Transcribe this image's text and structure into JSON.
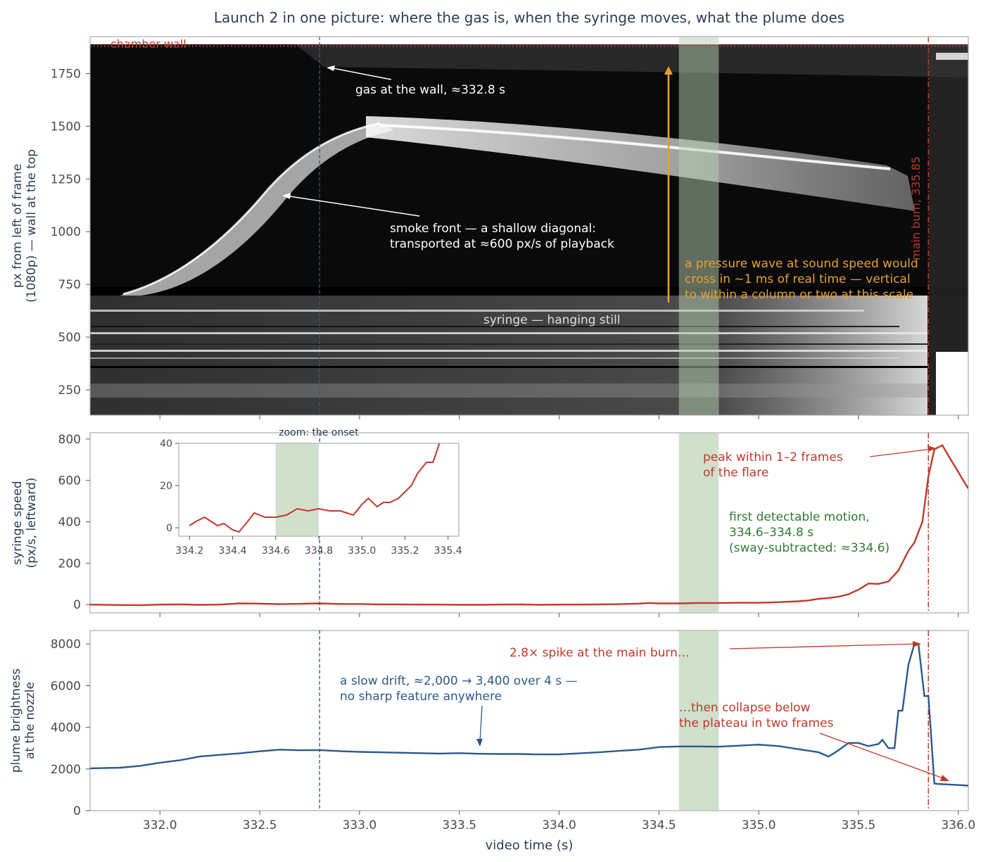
{
  "figure": {
    "title": "Launch 2 in one picture: where the gas is, when the syringe moves, what the plume does",
    "xlabel": "video time (s)",
    "x_ticks": [
      "332.0",
      "332.5",
      "333.0",
      "333.5",
      "334.0",
      "334.5",
      "335.0",
      "335.5",
      "336.0"
    ],
    "colors": {
      "title": "#2c3e55",
      "axis_text": "#4a4a4a",
      "red": "#c0392b",
      "blue": "#2c5a8a",
      "green": "#2e7d32",
      "orange": "#e8a030",
      "shade": "#2e7d32",
      "spine": "#aaaaaa"
    }
  },
  "chart_data": [
    {
      "type": "heatmap",
      "panel": "kymograph",
      "ylabel_line1": "px from left of frame",
      "ylabel_line2": "(1080p) — wall at the top",
      "xlim": [
        331.65,
        336.05
      ],
      "ylim": [
        130,
        1925
      ],
      "y_ticks": [
        250,
        500,
        750,
        1000,
        1250,
        1500,
        1750
      ],
      "wall_y": 1880,
      "wall_label": "chamber wall",
      "gas_wall_time": 332.8,
      "main_burn_time": 335.85,
      "main_burn_label": "main burn, 335.85",
      "shade_range": [
        334.6,
        334.8
      ],
      "annotations": {
        "gas_wall": "gas at the wall, ≈332.8 s",
        "smoke_line1": "smoke front — a shallow diagonal:",
        "smoke_line2": "transported at ≈600 px/s of playback",
        "pressure_line1": "a pressure wave at sound speed would",
        "pressure_line2": "cross in ~1 ms of real time — vertical",
        "pressure_line3": "to within a column or two at this scale",
        "syringe": "syringe — hanging still"
      }
    },
    {
      "type": "line",
      "panel": "syringe-speed",
      "ylabel_line1": "syringe speed",
      "ylabel_line2": "(px/s, leftward)",
      "xlim": [
        331.65,
        336.05
      ],
      "ylim": [
        -40,
        830
      ],
      "y_ticks": [
        0,
        200,
        400,
        600,
        800
      ],
      "x": [
        331.65,
        331.8,
        331.9,
        332.0,
        332.1,
        332.2,
        332.3,
        332.4,
        332.5,
        332.6,
        332.7,
        332.8,
        332.9,
        333.0,
        333.1,
        333.2,
        333.3,
        333.4,
        333.5,
        333.6,
        333.7,
        333.8,
        333.9,
        334.0,
        334.1,
        334.2,
        334.3,
        334.4,
        334.45,
        334.5,
        334.6,
        334.7,
        334.8,
        334.9,
        335.0,
        335.05,
        335.1,
        335.15,
        335.2,
        335.25,
        335.3,
        335.35,
        335.4,
        335.45,
        335.5,
        335.55,
        335.6,
        335.65,
        335.7,
        335.75,
        335.78,
        335.82,
        335.85,
        335.88,
        335.92,
        335.95,
        336.0,
        336.05
      ],
      "values": [
        0,
        -2,
        -3,
        0,
        1,
        -1,
        0,
        6,
        5,
        2,
        4,
        6,
        3,
        3,
        1,
        1,
        0,
        0,
        -1,
        -1,
        0,
        1,
        -1,
        0,
        0,
        1,
        2,
        5,
        8,
        6,
        6,
        8,
        8,
        9,
        9,
        10,
        12,
        14,
        16,
        20,
        28,
        32,
        38,
        50,
        72,
        102,
        100,
        112,
        165,
        260,
        300,
        400,
        620,
        750,
        770,
        720,
        640,
        560
      ],
      "inset": {
        "title": "zoom: the onset",
        "xlim": [
          334.15,
          335.45
        ],
        "ylim": [
          -4,
          40
        ],
        "x_ticks": [
          "334.2",
          "334.4",
          "334.6",
          "334.8",
          "335.0",
          "335.2",
          "335.4"
        ],
        "y_ticks": [
          0,
          20,
          40
        ],
        "x": [
          334.2,
          334.23,
          334.27,
          334.3,
          334.33,
          334.36,
          334.4,
          334.43,
          334.47,
          334.5,
          334.55,
          334.6,
          334.65,
          334.7,
          334.75,
          334.8,
          334.85,
          334.9,
          334.93,
          334.96,
          335.0,
          335.03,
          335.07,
          335.1,
          335.13,
          335.17,
          335.2,
          335.23,
          335.26,
          335.3,
          335.33,
          335.36
        ],
        "values": [
          1,
          3,
          5,
          3,
          1,
          2,
          -1,
          -2,
          3,
          7,
          5,
          5,
          6,
          9,
          8,
          9,
          8,
          8,
          7,
          6,
          11,
          14,
          10,
          12,
          12,
          14,
          17,
          20,
          26,
          31,
          31,
          40
        ]
      },
      "annotations": {
        "peak_line1": "peak within 1–2 frames",
        "peak_line2": "of the flare",
        "first_line1": "first detectable motion,",
        "first_line2": "334.6–334.8 s",
        "first_line3": "(sway-subtracted: ≈334.6)"
      }
    },
    {
      "type": "line",
      "panel": "plume-brightness",
      "ylabel_line1": "plume brightness",
      "ylabel_line2": "at the nozzle",
      "xlim": [
        331.65,
        336.05
      ],
      "ylim": [
        0,
        8650
      ],
      "y_ticks": [
        0,
        2000,
        4000,
        6000,
        8000
      ],
      "x": [
        331.65,
        331.8,
        331.9,
        332.0,
        332.1,
        332.2,
        332.3,
        332.4,
        332.5,
        332.6,
        332.7,
        332.8,
        332.9,
        333.0,
        333.1,
        333.2,
        333.3,
        333.4,
        333.5,
        333.6,
        333.7,
        333.8,
        333.9,
        334.0,
        334.1,
        334.2,
        334.3,
        334.4,
        334.5,
        334.6,
        334.7,
        334.8,
        334.9,
        335.0,
        335.1,
        335.2,
        335.3,
        335.35,
        335.4,
        335.45,
        335.5,
        335.55,
        335.6,
        335.62,
        335.65,
        335.68,
        335.7,
        335.72,
        335.75,
        335.78,
        335.8,
        335.83,
        335.85,
        335.88,
        335.9,
        335.92,
        336.0,
        336.05
      ],
      "values": [
        2030,
        2060,
        2150,
        2300,
        2420,
        2600,
        2680,
        2750,
        2850,
        2930,
        2900,
        2910,
        2860,
        2820,
        2800,
        2780,
        2760,
        2740,
        2760,
        2730,
        2720,
        2720,
        2700,
        2700,
        2750,
        2800,
        2870,
        2930,
        3050,
        3080,
        3080,
        3070,
        3120,
        3170,
        3100,
        2950,
        2800,
        2600,
        2900,
        3250,
        3250,
        3100,
        3200,
        3400,
        3000,
        3000,
        4800,
        4800,
        7000,
        8000,
        8000,
        5500,
        5500,
        1300,
        1280,
        1270,
        1230,
        1200
      ],
      "annotations": {
        "drift_line1": "a slow drift, ≈2,000 → 3,400 over 4 s —",
        "drift_line2": "no sharp feature anywhere",
        "spike": "2.8× spike at the main burn…",
        "collapse_line1": "…then collapse below",
        "collapse_line2": "the plateau in two frames"
      }
    }
  ]
}
